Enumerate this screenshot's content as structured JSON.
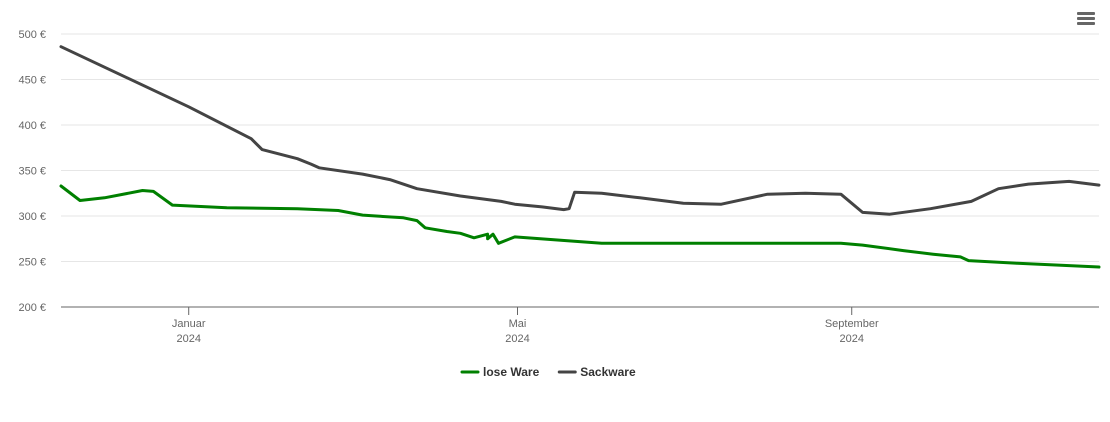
{
  "chart_data": {
    "type": "line",
    "title": "",
    "xlabel": "",
    "ylabel": "",
    "ylim": [
      200,
      500
    ],
    "grid": true,
    "legend_position": "bottom-center",
    "y_ticks": [
      "500 €",
      "450 €",
      "400 €",
      "350 €",
      "300 €",
      "250 €",
      "200 €"
    ],
    "y_tick_values": [
      500,
      450,
      400,
      350,
      300,
      250,
      200
    ],
    "x_ticks": [
      {
        "date": "2024-01-01",
        "month": "Januar",
        "year": "2024"
      },
      {
        "date": "2024-05-01",
        "month": "Mai",
        "year": "2024"
      },
      {
        "date": "2024-09-01",
        "month": "September",
        "year": "2024"
      }
    ],
    "xlim": [
      "2023-11-15",
      "2024-12-01"
    ],
    "series": [
      {
        "name": "lose Ware",
        "color": "#008000",
        "points": [
          [
            "2023-11-15",
            333
          ],
          [
            "2023-11-22",
            317
          ],
          [
            "2023-12-01",
            320
          ],
          [
            "2023-12-15",
            328
          ],
          [
            "2023-12-19",
            327
          ],
          [
            "2023-12-26",
            312
          ],
          [
            "2024-01-15",
            309
          ],
          [
            "2024-02-10",
            308
          ],
          [
            "2024-02-25",
            306
          ],
          [
            "2024-03-05",
            301
          ],
          [
            "2024-03-20",
            298
          ],
          [
            "2024-03-25",
            295
          ],
          [
            "2024-03-28",
            287
          ],
          [
            "2024-04-05",
            283
          ],
          [
            "2024-04-20",
            280
          ],
          [
            "2024-04-30",
            277
          ],
          [
            "2024-04-10",
            281
          ],
          [
            "2024-04-15",
            276
          ],
          [
            "2024-04-20",
            275
          ],
          [
            "2024-04-22",
            280
          ],
          [
            "2024-04-24",
            270
          ],
          [
            "2024-06-01",
            270
          ],
          [
            "2024-07-01",
            270
          ],
          [
            "2024-08-01",
            270
          ],
          [
            "2024-08-28",
            270
          ],
          [
            "2024-09-05",
            268
          ],
          [
            "2024-09-20",
            262
          ],
          [
            "2024-10-01",
            258
          ],
          [
            "2024-10-11",
            255
          ],
          [
            "2024-10-14",
            251
          ],
          [
            "2024-11-01",
            248
          ],
          [
            "2024-12-01",
            244
          ]
        ]
      },
      {
        "name": "Sackware",
        "color": "#444444",
        "points": [
          [
            "2023-11-15",
            486
          ],
          [
            "2024-01-01",
            420
          ],
          [
            "2024-01-24",
            385
          ],
          [
            "2024-01-28",
            373
          ],
          [
            "2024-02-10",
            363
          ],
          [
            "2024-02-15",
            357
          ],
          [
            "2024-02-18",
            353
          ],
          [
            "2024-03-05",
            346
          ],
          [
            "2024-03-15",
            340
          ],
          [
            "2024-03-25",
            330
          ],
          [
            "2024-04-10",
            322
          ],
          [
            "2024-04-25",
            316
          ],
          [
            "2024-04-30",
            313
          ],
          [
            "2024-05-10",
            310
          ],
          [
            "2024-05-18",
            307
          ],
          [
            "2024-05-20",
            308
          ],
          [
            "2024-05-22",
            326
          ],
          [
            "2024-06-01",
            325
          ],
          [
            "2024-06-15",
            320
          ],
          [
            "2024-07-01",
            314
          ],
          [
            "2024-07-15",
            313
          ],
          [
            "2024-08-01",
            324
          ],
          [
            "2024-08-15",
            325
          ],
          [
            "2024-08-28",
            324
          ],
          [
            "2024-09-05",
            304
          ],
          [
            "2024-09-15",
            302
          ],
          [
            "2024-09-30",
            308
          ],
          [
            "2024-10-15",
            316
          ],
          [
            "2024-10-25",
            330
          ],
          [
            "2024-11-05",
            335
          ],
          [
            "2024-11-20",
            338
          ],
          [
            "2024-12-01",
            334
          ]
        ]
      }
    ]
  }
}
